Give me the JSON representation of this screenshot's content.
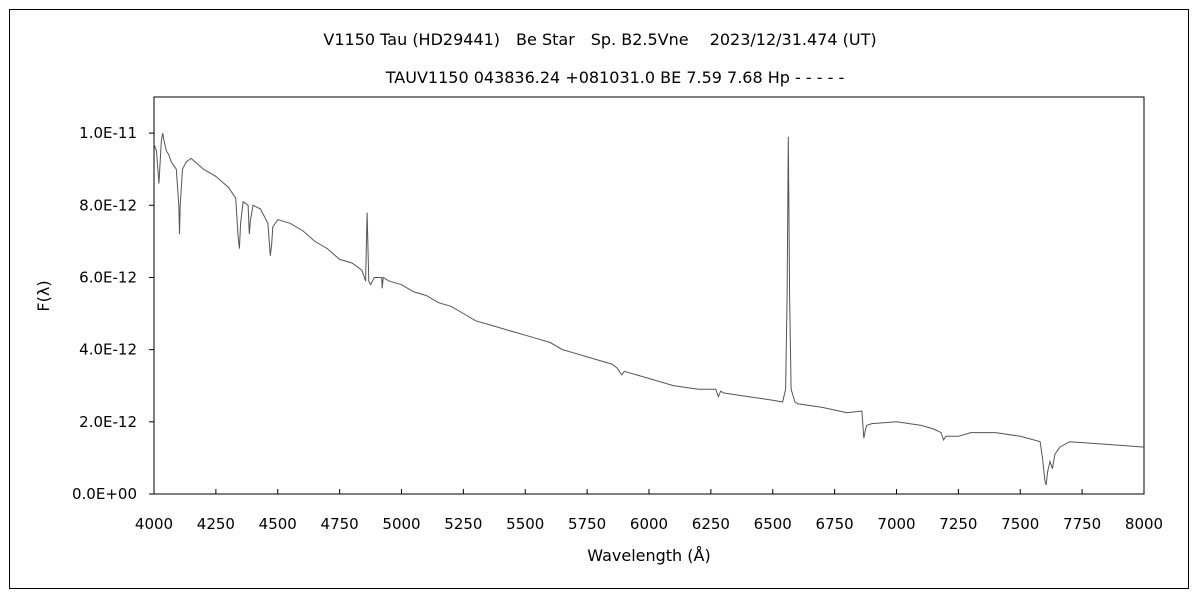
{
  "chart_data": {
    "type": "line",
    "title": "V1150 Tau (HD29441)　Be Star　Sp. B2.5Vne　 2023/12/31.474 (UT)",
    "subtitle": "TAUV1150 043836.24 +081031.0 BE 7.59 7.68 Hp - - - - -",
    "xlabel": "Wavelength (Å)",
    "ylabel": "F(λ)",
    "xlim": [
      4000,
      8000
    ],
    "ylim": [
      0,
      1.1e-11
    ],
    "x_ticks": [
      4000,
      4250,
      4500,
      4750,
      5000,
      5250,
      5500,
      5750,
      6000,
      6250,
      6500,
      6750,
      7000,
      7250,
      7500,
      7750,
      8000
    ],
    "x_tick_labels": [
      "4000",
      "4250",
      "4500",
      "4750",
      "5000",
      "5250",
      "5500",
      "5750",
      "6000",
      "6250",
      "6500",
      "6750",
      "7000",
      "7250",
      "7500",
      "7750",
      "8000"
    ],
    "y_ticks": [
      0,
      2e-12,
      4e-12,
      6e-12,
      8e-12,
      1e-11
    ],
    "y_tick_labels": [
      "0.0E+00",
      "2.0E-12",
      "4.0E-12",
      "6.0E-12",
      "8.0E-12",
      "1.0E-11"
    ],
    "grid": false,
    "series_color": "#555555",
    "series": [
      {
        "x": [
          4000,
          4010,
          4020,
          4030,
          4035,
          4040,
          4050,
          4060,
          4070,
          4090,
          4100,
          4103,
          4106,
          4115,
          4130,
          4150,
          4200,
          4250,
          4300,
          4330,
          4340,
          4345,
          4350,
          4360,
          4380,
          4385,
          4390,
          4400,
          4430,
          4460,
          4470,
          4475,
          4480,
          4500,
          4550,
          4600,
          4650,
          4700,
          4750,
          4800,
          4840,
          4855,
          4861,
          4868,
          4875,
          4890,
          4920,
          4922,
          4926,
          4950,
          5000,
          5050,
          5100,
          5150,
          5200,
          5250,
          5300,
          5350,
          5400,
          5450,
          5500,
          5550,
          5600,
          5650,
          5700,
          5750,
          5800,
          5850,
          5870,
          5890,
          5900,
          5950,
          6000,
          6100,
          6200,
          6270,
          6280,
          6290,
          6300,
          6400,
          6450,
          6500,
          6540,
          6552,
          6558,
          6563,
          6568,
          6574,
          6590,
          6600,
          6700,
          6800,
          6860,
          6868,
          6875,
          6880,
          6900,
          7000,
          7100,
          7150,
          7180,
          7190,
          7200,
          7250,
          7300,
          7400,
          7500,
          7580,
          7590,
          7600,
          7605,
          7610,
          7620,
          7630,
          7640,
          7660,
          7700,
          7800,
          7900,
          8000
        ],
        "y": [
          9.7e-12,
          9.5e-12,
          8.6e-12,
          9.8e-12,
          1e-11,
          9.8e-12,
          9.5e-12,
          9.4e-12,
          9.2e-12,
          9e-12,
          8e-12,
          7.2e-12,
          8e-12,
          9e-12,
          9.2e-12,
          9.3e-12,
          9e-12,
          8.8e-12,
          8.5e-12,
          8.2e-12,
          7.1e-12,
          6.8e-12,
          7.5e-12,
          8.1e-12,
          8e-12,
          7.2e-12,
          7.6e-12,
          8e-12,
          7.9e-12,
          7.5e-12,
          6.6e-12,
          6.9e-12,
          7.4e-12,
          7.6e-12,
          7.5e-12,
          7.3e-12,
          7e-12,
          6.8e-12,
          6.5e-12,
          6.4e-12,
          6.2e-12,
          5.9e-12,
          7.8e-12,
          5.9e-12,
          5.8e-12,
          6e-12,
          6e-12,
          5.7e-12,
          6e-12,
          5.9e-12,
          5.8e-12,
          5.6e-12,
          5.5e-12,
          5.3e-12,
          5.2e-12,
          5e-12,
          4.8e-12,
          4.7e-12,
          4.6e-12,
          4.5e-12,
          4.4e-12,
          4.3e-12,
          4.2e-12,
          4e-12,
          3.9e-12,
          3.8e-12,
          3.7e-12,
          3.6e-12,
          3.5e-12,
          3.3e-12,
          3.4e-12,
          3.3e-12,
          3.2e-12,
          3e-12,
          2.9e-12,
          2.9e-12,
          2.7e-12,
          2.85e-12,
          2.8e-12,
          2.7e-12,
          2.65e-12,
          2.6e-12,
          2.55e-12,
          2.9e-12,
          5.5e-12,
          9.9e-12,
          5.5e-12,
          2.9e-12,
          2.55e-12,
          2.5e-12,
          2.4e-12,
          2.25e-12,
          2.3e-12,
          1.55e-12,
          1.8e-12,
          1.9e-12,
          1.95e-12,
          2e-12,
          1.9e-12,
          1.8e-12,
          1.7e-12,
          1.5e-12,
          1.6e-12,
          1.6e-12,
          1.7e-12,
          1.7e-12,
          1.6e-12,
          1.45e-12,
          1e-12,
          3.5e-13,
          2.5e-13,
          6e-13,
          9e-13,
          7e-13,
          1.1e-12,
          1.3e-12,
          1.45e-12,
          1.4e-12,
          1.35e-12,
          1.3e-12
        ]
      }
    ]
  }
}
